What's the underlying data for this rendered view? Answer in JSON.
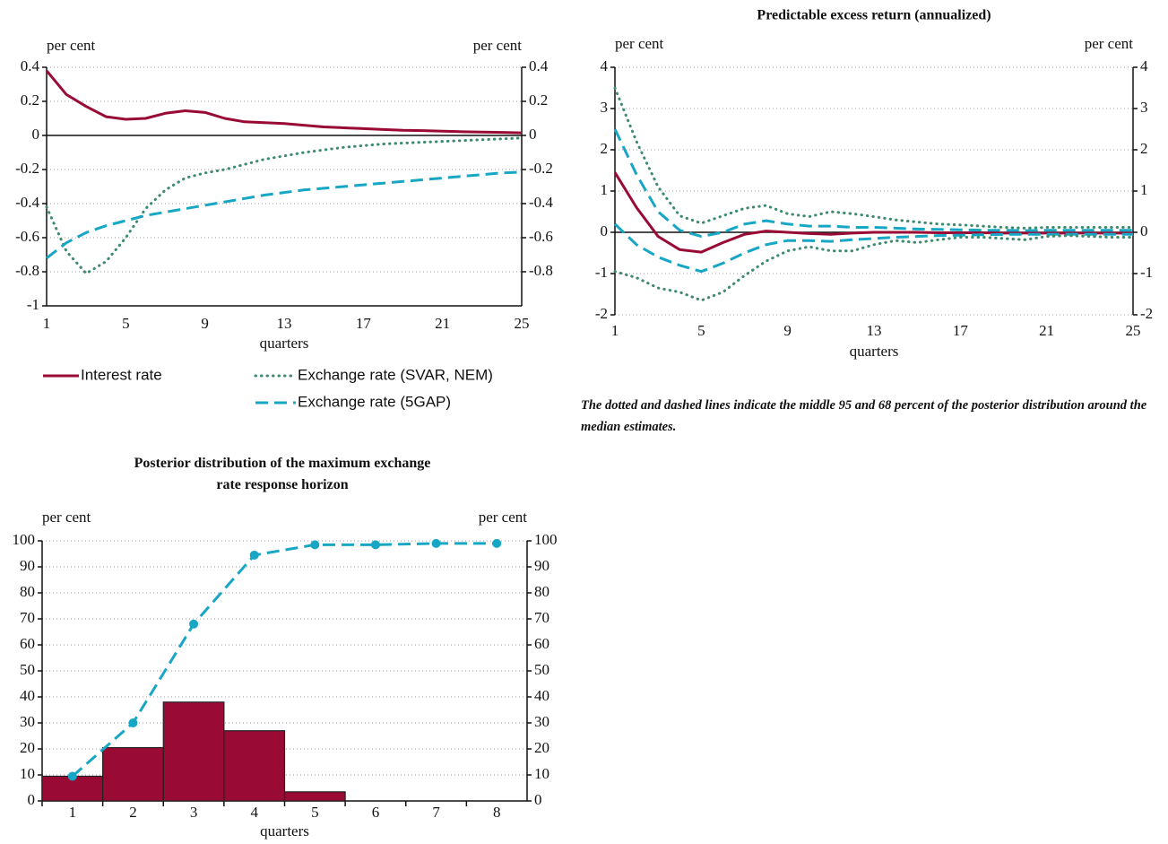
{
  "chart_data": [
    {
      "type": "line",
      "ylabel": "per cent",
      "y2label": "per cent",
      "xlabel": "quarters",
      "x": [
        1,
        2,
        3,
        4,
        5,
        6,
        7,
        8,
        9,
        10,
        11,
        12,
        13,
        14,
        15,
        16,
        17,
        18,
        19,
        20,
        21,
        22,
        23,
        24,
        25
      ],
      "xlim": [
        1,
        25
      ],
      "xticks": [
        1,
        5,
        9,
        13,
        17,
        21,
        25
      ],
      "ylim": [
        -1,
        0.4
      ],
      "yticks": [
        0.4,
        0.2,
        0,
        -0.2,
        -0.4,
        -0.6,
        -0.8,
        -1
      ],
      "y2lim": [
        -1,
        0.4
      ],
      "y2ticks": [
        0.4,
        0.2,
        0,
        -0.2,
        -0.4,
        -0.6,
        -0.8
      ],
      "grid": true,
      "legend": true,
      "series": [
        {
          "name": "Interest rate",
          "color": "#990a35",
          "style": "solid",
          "values": [
            0.38,
            0.24,
            0.17,
            0.11,
            0.095,
            0.1,
            0.13,
            0.145,
            0.135,
            0.1,
            0.08,
            0.075,
            0.07,
            0.06,
            0.05,
            0.045,
            0.04,
            0.035,
            0.03,
            0.028,
            0.025,
            0.022,
            0.02,
            0.018,
            0.015
          ]
        },
        {
          "name": "Exchange rate (SVAR, NEM)",
          "color": "#3d8a6c",
          "style": "dotted",
          "values": [
            -0.42,
            -0.68,
            -0.81,
            -0.74,
            -0.6,
            -0.43,
            -0.32,
            -0.25,
            -0.22,
            -0.2,
            -0.17,
            -0.14,
            -0.12,
            -0.1,
            -0.085,
            -0.07,
            -0.06,
            -0.05,
            -0.045,
            -0.04,
            -0.035,
            -0.03,
            -0.025,
            -0.02,
            -0.015
          ]
        },
        {
          "name": "Exchange rate (5GAP)",
          "color": "#17a6c4",
          "style": "dashed",
          "values": [
            -0.72,
            -0.63,
            -0.57,
            -0.53,
            -0.5,
            -0.47,
            -0.45,
            -0.43,
            -0.41,
            -0.39,
            -0.37,
            -0.35,
            -0.335,
            -0.32,
            -0.31,
            -0.3,
            -0.29,
            -0.28,
            -0.27,
            -0.26,
            -0.25,
            -0.24,
            -0.23,
            -0.22,
            -0.215
          ]
        }
      ]
    },
    {
      "type": "line",
      "title": "Predictable excess return (annualized)",
      "ylabel": "per cent",
      "y2label": "per cent",
      "xlabel": "quarters",
      "note": "The dotted and dashed lines indicate the middle 95 and 68 percent of the posterior distribution around the median estimates.",
      "x": [
        1,
        2,
        3,
        4,
        5,
        6,
        7,
        8,
        9,
        10,
        11,
        12,
        13,
        14,
        15,
        16,
        17,
        18,
        19,
        20,
        21,
        22,
        23,
        24,
        25
      ],
      "xlim": [
        1,
        25
      ],
      "xticks": [
        1,
        5,
        9,
        13,
        17,
        21,
        25
      ],
      "ylim": [
        -2,
        4
      ],
      "yticks": [
        4,
        3,
        2,
        1,
        0,
        -1,
        -2
      ],
      "y2lim": [
        -2,
        4
      ],
      "y2ticks": [
        4,
        3,
        2,
        1,
        0,
        -1,
        -2
      ],
      "grid": true,
      "series": [
        {
          "color": "#3d8a6c",
          "style": "dotted",
          "values": [
            3.5,
            2.2,
            1.1,
            0.4,
            0.22,
            0.4,
            0.58,
            0.65,
            0.45,
            0.38,
            0.5,
            0.45,
            0.38,
            0.3,
            0.25,
            0.2,
            0.18,
            0.15,
            0.12,
            0.1,
            0.12,
            0.12,
            0.12,
            0.12,
            0.12
          ]
        },
        {
          "color": "#17a6c4",
          "style": "dashed",
          "values": [
            2.5,
            1.4,
            0.5,
            0.05,
            -0.1,
            0,
            0.2,
            0.28,
            0.2,
            0.15,
            0.15,
            0.12,
            0.12,
            0.1,
            0.08,
            0.07,
            0.06,
            0.05,
            0.05,
            0.04,
            0.05,
            0.05,
            0.05,
            0.05,
            0.05
          ]
        },
        {
          "color": "#990a35",
          "style": "solid",
          "values": [
            1.45,
            0.6,
            -0.1,
            -0.42,
            -0.48,
            -0.25,
            -0.05,
            0.03,
            0,
            -0.03,
            -0.05,
            -0.02,
            0,
            0,
            0,
            -0.01,
            -0.01,
            -0.01,
            -0.02,
            -0.02,
            -0.02,
            -0.02,
            -0.02,
            -0.02,
            -0.02
          ]
        },
        {
          "color": "#17a6c4",
          "style": "dashed",
          "values": [
            0.2,
            -0.3,
            -0.6,
            -0.8,
            -0.95,
            -0.75,
            -0.5,
            -0.3,
            -0.2,
            -0.2,
            -0.22,
            -0.18,
            -0.15,
            -0.12,
            -0.1,
            -0.08,
            -0.07,
            -0.06,
            -0.05,
            -0.05,
            -0.05,
            -0.05,
            -0.05,
            -0.05,
            -0.05
          ]
        },
        {
          "color": "#3d8a6c",
          "style": "dotted",
          "values": [
            -0.95,
            -1.1,
            -1.35,
            -1.45,
            -1.65,
            -1.45,
            -1.05,
            -0.7,
            -0.45,
            -0.35,
            -0.45,
            -0.45,
            -0.3,
            -0.2,
            -0.25,
            -0.18,
            -0.12,
            -0.12,
            -0.15,
            -0.18,
            -0.1,
            -0.08,
            -0.1,
            -0.12,
            -0.12
          ]
        }
      ]
    },
    {
      "type": "bar",
      "title": "Posterior distribution of the maximum exchange rate response horizon",
      "ylabel": "per cent",
      "y2label": "per cent",
      "xlabel": "quarters",
      "categories": [
        "1",
        "2",
        "3",
        "4",
        "5",
        "6",
        "7",
        "8"
      ],
      "ylim": [
        0,
        100
      ],
      "yticks": [
        100,
        90,
        80,
        70,
        60,
        50,
        40,
        30,
        20,
        10,
        0
      ],
      "y2lim": [
        0,
        100
      ],
      "y2ticks": [
        100,
        90,
        80,
        70,
        60,
        50,
        40,
        30,
        20,
        10,
        0
      ],
      "grid": true,
      "series": [
        {
          "type": "bar",
          "color": "#990a35",
          "values": [
            9.5,
            20.5,
            38,
            27,
            3.5,
            0,
            0,
            0
          ]
        },
        {
          "type": "line",
          "color": "#17a6c4",
          "style": "dashed",
          "markers": true,
          "values": [
            9.5,
            30,
            68,
            94.5,
            98.5,
            98.5,
            99,
            99
          ]
        }
      ]
    }
  ]
}
